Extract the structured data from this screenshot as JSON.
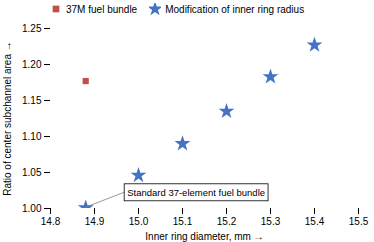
{
  "chart_data": {
    "type": "scatter",
    "xlabel": "Inner ring diameter, mm",
    "ylabel": "Ratio of center subchannel area",
    "xlim": [
      14.8,
      15.5
    ],
    "ylim": [
      1.0,
      1.25
    ],
    "xticks": [
      14.8,
      14.9,
      {
        "value": 15.0,
        "label": "15.0"
      },
      15.1,
      15.2,
      15.3,
      15.4,
      15.5
    ],
    "yticks": [
      {
        "value": 1.0,
        "label": "1.00"
      },
      1.05,
      {
        "value": 1.1,
        "label": "1.10"
      },
      1.15,
      {
        "value": 1.2,
        "label": "1.20"
      },
      1.25
    ],
    "series": [
      {
        "name": "37M fuel bundle",
        "color": "#c0504d",
        "marker": "square",
        "x": [
          14.88
        ],
        "values": [
          1.177
        ]
      },
      {
        "name": "Modification of inner ring radius",
        "color": "#4472c4",
        "marker": "star",
        "x": [
          14.88,
          15.0,
          15.1,
          15.2,
          15.3,
          15.4
        ],
        "values": [
          1.001,
          1.046,
          1.09,
          1.135,
          1.183,
          1.227
        ]
      }
    ],
    "annotations": [
      {
        "text": "Standard 37-element fuel bundle",
        "x": 14.88,
        "y": 1.001
      }
    ],
    "legend": "upper left",
    "grid": false
  }
}
